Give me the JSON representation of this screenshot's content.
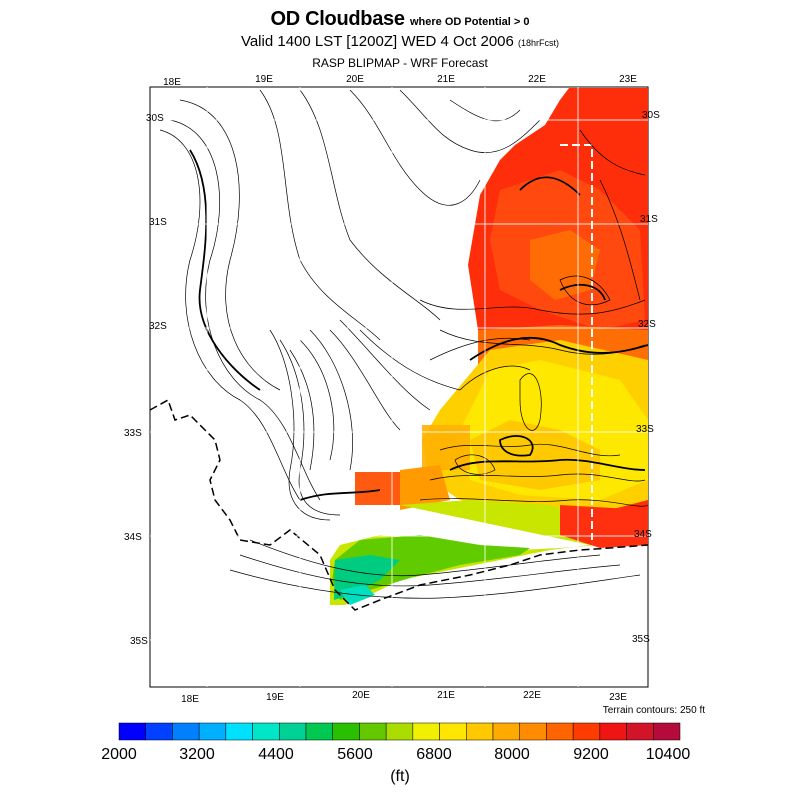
{
  "title": {
    "main": "OD Cloudbase",
    "condition": "where OD Potential > 0",
    "valid": "Valid 1400 LST [1200Z] WED 4 Oct 2006",
    "forecast_hours": "(18hrFcst)",
    "model": "RASP BLIPMAP - WRF Forecast"
  },
  "map": {
    "top_lon_labels": [
      "18E",
      "19E",
      "20E",
      "21E",
      "22E",
      "23E"
    ],
    "bottom_lon_labels": [
      "18E",
      "19E",
      "20E",
      "21E",
      "22E",
      "23E"
    ],
    "left_lat_labels": [
      "30S",
      "31S",
      "32S",
      "33S",
      "34S",
      "35S"
    ],
    "right_lat_labels": [
      "30S",
      "31S",
      "32S",
      "33S",
      "34S",
      "35S"
    ],
    "terrain_note": "Terrain contours: 250 ft"
  },
  "colorbar": {
    "labels": [
      "2000",
      "3200",
      "4400",
      "5600",
      "6800",
      "8000",
      "9200",
      "10400"
    ],
    "units": "(ft)",
    "colors": [
      "#0000ff",
      "#0040ff",
      "#0080ff",
      "#00b0ff",
      "#00e0ff",
      "#00e6c8",
      "#00d296",
      "#00c850",
      "#28c000",
      "#64c800",
      "#aadc00",
      "#f0f000",
      "#ffe600",
      "#ffc800",
      "#ffaa00",
      "#ff8c00",
      "#ff6400",
      "#ff3c00",
      "#f01414",
      "#d21428",
      "#b40a3c"
    ]
  }
}
